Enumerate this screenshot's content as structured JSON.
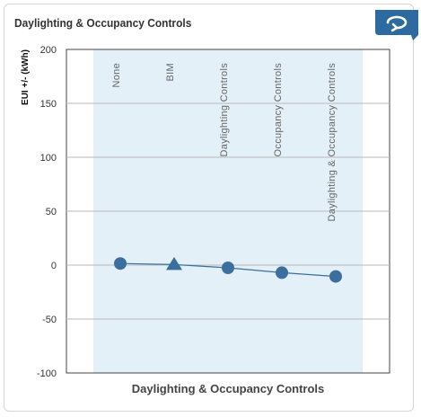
{
  "panel": {
    "title": "Daylighting & Occupancy Controls"
  },
  "controls": {
    "toggle_icon": "rotate-arrow-icon"
  },
  "colors": {
    "accent": "#2d6a9f",
    "band": "#e4f0f8",
    "marker": "#3a6f9e",
    "line": "#3a6f9e"
  },
  "chart_data": {
    "type": "line",
    "title": "",
    "xlabel": "Daylighting & Occupancy Controls",
    "ylabel": "EUI +/- (kWh)",
    "ylim": [
      -100,
      200
    ],
    "yticks": [
      200,
      150,
      100,
      50,
      0,
      -50,
      -100
    ],
    "grid": true,
    "categories": [
      "None",
      "BIM",
      "Daylighting Controls",
      "Occupancy Controls",
      "Daylighting & Occupancy Controls"
    ],
    "series": [
      {
        "values": [
          1.5,
          0.5,
          -2.5,
          -7,
          -10.5
        ],
        "markers": [
          "circle",
          "triangle",
          "circle",
          "circle",
          "circle"
        ]
      }
    ]
  }
}
